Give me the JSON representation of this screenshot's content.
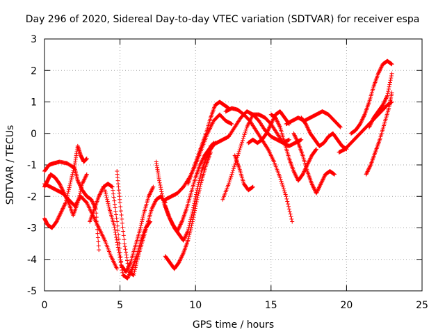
{
  "chart_data": {
    "type": "scatter",
    "title": "Day 296 of 2020, Sidereal Day-to-day VTEC variation (SDTVAR) for receiver espa",
    "xlabel": "GPS time / hours",
    "ylabel": "SDTVAR / TECUs",
    "xlim": [
      0,
      25
    ],
    "ylim": [
      -5,
      3
    ],
    "xticks": [
      0,
      5,
      10,
      15,
      20,
      25
    ],
    "yticks": [
      -5,
      -4,
      -3,
      -2,
      -1,
      0,
      1,
      2,
      3
    ],
    "grid": true,
    "marker": "+",
    "color": "#ff0000",
    "series": [
      {
        "name": "s1",
        "x": [
          0,
          0.3,
          0.6,
          1.0,
          1.5,
          2.0,
          2.2,
          2.5,
          2.8,
          3.1,
          3.4,
          3.6
        ],
        "y": [
          -1.2,
          -1.0,
          -0.95,
          -0.9,
          -0.95,
          -1.1,
          -1.5,
          -1.8,
          -2.0,
          -2.1,
          -2.4,
          -3.7
        ]
      },
      {
        "name": "s2",
        "x": [
          0,
          0.2,
          0.4,
          0.7,
          1.0,
          1.3,
          1.6,
          1.9,
          2.2,
          2.5,
          2.8
        ],
        "y": [
          -1.7,
          -1.5,
          -1.3,
          -1.4,
          -1.6,
          -1.9,
          -2.2,
          -2.6,
          -2.2,
          -1.6,
          -1.3
        ]
      },
      {
        "name": "s3",
        "x": [
          0,
          0.2,
          0.5,
          0.8,
          1.1,
          1.4,
          1.7,
          2.0,
          2.2,
          2.4,
          2.6,
          2.8
        ],
        "y": [
          -2.7,
          -2.9,
          -3.0,
          -2.8,
          -2.5,
          -2.2,
          -1.6,
          -1.0,
          -0.4,
          -0.7,
          -0.9,
          -0.8
        ]
      },
      {
        "name": "s4",
        "x": [
          0,
          0.4,
          0.8,
          1.2,
          1.6,
          2.0,
          2.4,
          2.8,
          3.2,
          3.6,
          4.0,
          4.4,
          4.8
        ],
        "y": [
          -1.6,
          -1.7,
          -1.8,
          -1.9,
          -2.1,
          -2.3,
          -2.0,
          -2.2,
          -2.6,
          -3.0,
          -3.4,
          -3.9,
          -4.3
        ]
      },
      {
        "name": "s5",
        "x": [
          3.0,
          3.3,
          3.6,
          3.9,
          4.2,
          4.5,
          4.8,
          5.1,
          5.4,
          5.7,
          6.0,
          6.3,
          6.6,
          6.9,
          7.2
        ],
        "y": [
          -2.8,
          -2.4,
          -2.0,
          -1.7,
          -1.6,
          -1.7,
          -2.8,
          -4.2,
          -4.4,
          -4.1,
          -3.6,
          -3.1,
          -2.5,
          -2.0,
          -1.7
        ]
      },
      {
        "name": "s6",
        "x": [
          4.0,
          4.3,
          4.6,
          4.9,
          5.2,
          5.5,
          5.8,
          6.1,
          6.4,
          6.7,
          7.0
        ],
        "y": [
          -1.8,
          -2.4,
          -2.9,
          -3.7,
          -4.5,
          -4.6,
          -4.3,
          -3.9,
          -3.4,
          -3.0,
          -2.8
        ]
      },
      {
        "name": "s7",
        "x": [
          4.8,
          5.0,
          5.3,
          5.6,
          5.9,
          6.2,
          6.5,
          6.8,
          7.1,
          7.4,
          7.7,
          8.0
        ],
        "y": [
          -1.2,
          -2.2,
          -3.5,
          -4.4,
          -4.5,
          -3.9,
          -3.4,
          -2.9,
          -2.4,
          -2.1,
          -2.0,
          -2.2
        ]
      },
      {
        "name": "s8",
        "x": [
          7.4,
          7.6,
          7.9,
          8.2,
          8.5,
          8.8,
          9.1,
          9.4,
          9.7,
          10.0,
          10.3,
          10.6,
          10.9,
          11.2
        ],
        "y": [
          -0.9,
          -1.5,
          -2.2,
          -2.6,
          -2.9,
          -3.1,
          -2.8,
          -2.4,
          -1.9,
          -1.4,
          -1.0,
          -0.7,
          -0.5,
          -0.3
        ]
      },
      {
        "name": "s9",
        "x": [
          8.0,
          8.3,
          8.6,
          8.9,
          9.2,
          9.5,
          9.8,
          10.1,
          10.4,
          10.7,
          11.0,
          11.3
        ],
        "y": [
          -2.3,
          -2.7,
          -3.0,
          -3.2,
          -3.4,
          -3.1,
          -2.5,
          -1.8,
          -1.2,
          -0.8,
          -0.5,
          -0.3
        ]
      },
      {
        "name": "s10",
        "x": [
          8.0,
          8.3,
          8.6,
          8.9,
          9.2,
          9.5,
          9.8,
          10.1,
          10.4,
          10.7,
          11.0
        ],
        "y": [
          -3.9,
          -4.1,
          -4.3,
          -4.1,
          -3.8,
          -3.4,
          -2.8,
          -2.1,
          -1.5,
          -1.0,
          -0.6
        ]
      },
      {
        "name": "s11",
        "x": [
          8.0,
          8.4,
          8.8,
          9.2,
          9.6,
          10.0,
          10.4,
          10.8,
          11.2,
          11.6,
          12.0,
          12.4
        ],
        "y": [
          -2.1,
          -2.0,
          -1.9,
          -1.7,
          -1.4,
          -1.0,
          -0.5,
          0.0,
          0.4,
          0.6,
          0.4,
          0.3
        ]
      },
      {
        "name": "s12",
        "x": [
          9.5,
          9.8,
          10.1,
          10.4,
          10.7,
          11.0,
          11.3,
          11.6,
          11.9,
          12.2
        ],
        "y": [
          -1.6,
          -1.2,
          -0.8,
          -0.4,
          0.0,
          0.5,
          0.9,
          1.0,
          0.9,
          0.8
        ]
      },
      {
        "name": "s13",
        "x": [
          11.0,
          11.4,
          11.8,
          12.2,
          12.6,
          13.0,
          13.4,
          13.8,
          14.2,
          14.6,
          15.0,
          15.4,
          15.8,
          16.2
        ],
        "y": [
          -0.4,
          -0.3,
          -0.2,
          -0.1,
          0.2,
          0.5,
          0.7,
          0.6,
          0.4,
          0.1,
          -0.1,
          -0.2,
          -0.3,
          -0.2
        ]
      },
      {
        "name": "s14",
        "x": [
          12.0,
          12.4,
          12.8,
          13.2,
          13.6,
          14.0,
          14.4,
          14.8,
          15.2,
          15.6,
          16.0,
          16.4
        ],
        "y": [
          0.7,
          0.8,
          0.75,
          0.6,
          0.4,
          0.1,
          -0.2,
          -0.5,
          -0.9,
          -1.4,
          -2.0,
          -2.8
        ]
      },
      {
        "name": "s15",
        "x": [
          11.8,
          12.2,
          12.6,
          13.0,
          13.4,
          13.8,
          14.2,
          14.6,
          15.0,
          15.4,
          15.8,
          16.2,
          16.6,
          17.0
        ],
        "y": [
          -2.1,
          -1.6,
          -1.0,
          -0.4,
          0.2,
          0.6,
          0.6,
          0.5,
          0.3,
          0.0,
          -0.3,
          -0.4,
          -0.3,
          -0.2
        ]
      },
      {
        "name": "s16",
        "x": [
          12.6,
          12.9,
          13.2,
          13.5,
          13.8
        ],
        "y": [
          -0.7,
          -1.1,
          -1.6,
          -1.8,
          -1.7
        ]
      },
      {
        "name": "s17",
        "x": [
          13.5,
          13.8,
          14.1,
          14.4,
          14.7,
          15.0,
          15.3,
          15.6,
          15.9,
          16.2
        ],
        "y": [
          -0.3,
          -0.2,
          -0.3,
          -0.2,
          0.0,
          0.3,
          0.6,
          0.7,
          0.5,
          0.3
        ]
      },
      {
        "name": "s18",
        "x": [
          15.0,
          15.3,
          15.6,
          15.9,
          16.2,
          16.5,
          16.8,
          17.1,
          17.4,
          17.7,
          18.0
        ],
        "y": [
          0.6,
          0.5,
          0.2,
          -0.3,
          -0.8,
          -1.2,
          -1.5,
          -1.3,
          -1.0,
          -0.7,
          -0.5
        ]
      },
      {
        "name": "s19",
        "x": [
          16.0,
          16.4,
          16.8,
          17.2,
          17.6,
          18.0,
          18.4,
          18.8,
          19.2,
          19.6
        ],
        "y": [
          0.3,
          0.4,
          0.5,
          0.4,
          0.5,
          0.6,
          0.7,
          0.6,
          0.4,
          0.2
        ]
      },
      {
        "name": "s20",
        "x": [
          16.5,
          16.8,
          17.1,
          17.4,
          17.7,
          18.0,
          18.3,
          18.6,
          18.9,
          19.2
        ],
        "y": [
          0.0,
          -0.3,
          -0.7,
          -1.2,
          -1.6,
          -1.9,
          -1.6,
          -1.3,
          -1.2,
          -1.3
        ]
      },
      {
        "name": "s21",
        "x": [
          17.0,
          17.3,
          17.6,
          17.9,
          18.2,
          18.5,
          18.8,
          19.1,
          19.4,
          19.7,
          20.0
        ],
        "y": [
          0.5,
          0.3,
          0.0,
          -0.2,
          -0.4,
          -0.3,
          -0.1,
          0.0,
          -0.2,
          -0.4,
          -0.5
        ]
      },
      {
        "name": "s22",
        "x": [
          19.5,
          19.9,
          20.3,
          20.7,
          21.1,
          21.5,
          21.9,
          22.3,
          22.7,
          23.0
        ],
        "y": [
          -0.6,
          -0.5,
          -0.3,
          -0.1,
          0.1,
          0.3,
          0.5,
          0.7,
          0.9,
          1.0
        ]
      },
      {
        "name": "s23",
        "x": [
          20.3,
          20.6,
          20.9,
          21.2,
          21.5,
          21.8,
          22.1,
          22.4,
          22.7,
          23.0
        ],
        "y": [
          0.0,
          0.1,
          0.3,
          0.6,
          1.0,
          1.5,
          1.9,
          2.2,
          2.3,
          2.2
        ]
      },
      {
        "name": "s24",
        "x": [
          21.3,
          21.6,
          21.9,
          22.2,
          22.5,
          22.8,
          23.0
        ],
        "y": [
          -1.3,
          -1.0,
          -0.6,
          -0.2,
          0.3,
          0.8,
          1.3
        ]
      },
      {
        "name": "s25",
        "x": [
          21.5,
          21.8,
          22.1,
          22.4,
          22.7,
          23.0
        ],
        "y": [
          0.2,
          0.5,
          0.7,
          0.9,
          1.2,
          1.9
        ]
      }
    ]
  }
}
